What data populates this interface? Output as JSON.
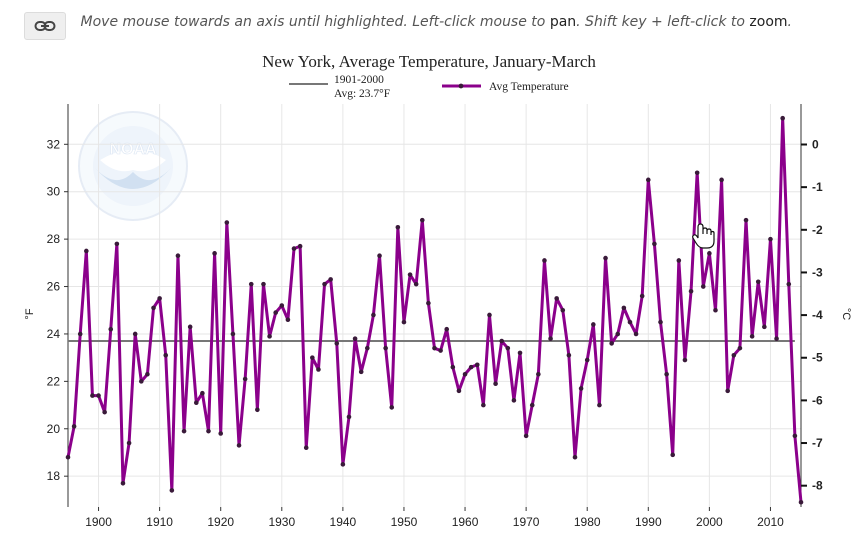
{
  "toolbar": {
    "hint_pre": "Move mouse towards an axis until highlighted. Left-click mouse to ",
    "hint_pan": "pan",
    "hint_mid": ". Shift key + left-click to ",
    "hint_zoom": "zoom",
    "hint_post": "."
  },
  "chart_data": {
    "type": "line",
    "title": "New York, Average Temperature, January-March",
    "ylabel": "°F",
    "y2label": "°C",
    "xlim": [
      1895,
      2015
    ],
    "ylim": [
      16.7,
      33.7
    ],
    "y2lim": [
      -8.5,
      0.95
    ],
    "x_ticks": [
      1900,
      1910,
      1920,
      1930,
      1940,
      1950,
      1960,
      1970,
      1980,
      1990,
      2000,
      2010
    ],
    "y_ticks": [
      18,
      20,
      22,
      24,
      26,
      28,
      30,
      32
    ],
    "y2_ticks": [
      0,
      -1,
      -2,
      -3,
      -4,
      -5,
      -6,
      -7,
      -8
    ],
    "grid": true,
    "legend": {
      "baseline_line1": "1901-2000",
      "baseline_line2": "Avg: 23.7°F",
      "series_name": "Avg Temperature"
    },
    "baseline": {
      "value": 23.7,
      "x_range": [
        1895,
        2014
      ]
    },
    "colors": {
      "series": "#8b008b",
      "marker": "#3a1a3a",
      "baseline": "#777777"
    },
    "series": [
      {
        "name": "Avg Temperature",
        "x": [
          1895,
          1896,
          1897,
          1898,
          1899,
          1900,
          1901,
          1902,
          1903,
          1904,
          1905,
          1906,
          1907,
          1908,
          1909,
          1910,
          1911,
          1912,
          1913,
          1914,
          1915,
          1916,
          1917,
          1918,
          1919,
          1920,
          1921,
          1922,
          1923,
          1924,
          1925,
          1926,
          1927,
          1928,
          1929,
          1930,
          1931,
          1932,
          1933,
          1934,
          1935,
          1936,
          1937,
          1938,
          1939,
          1940,
          1941,
          1942,
          1943,
          1944,
          1945,
          1946,
          1947,
          1948,
          1949,
          1950,
          1951,
          1952,
          1953,
          1954,
          1955,
          1956,
          1957,
          1958,
          1959,
          1960,
          1961,
          1962,
          1963,
          1964,
          1965,
          1966,
          1967,
          1968,
          1969,
          1970,
          1971,
          1972,
          1973,
          1974,
          1975,
          1976,
          1977,
          1978,
          1979,
          1980,
          1981,
          1982,
          1983,
          1984,
          1985,
          1986,
          1987,
          1988,
          1989,
          1990,
          1991,
          1992,
          1993,
          1994,
          1995,
          1996,
          1997,
          1998,
          1999,
          2000,
          2001,
          2002,
          2003,
          2004,
          2005,
          2006,
          2007,
          2008,
          2009,
          2010,
          2011,
          2012,
          2013,
          2014,
          2015
        ],
        "y": [
          18.8,
          20.1,
          24.0,
          27.5,
          21.4,
          21.4,
          20.7,
          24.2,
          27.8,
          17.7,
          19.4,
          24.0,
          22.0,
          22.3,
          25.1,
          25.5,
          23.1,
          17.4,
          27.3,
          19.9,
          24.3,
          21.1,
          21.5,
          19.9,
          27.4,
          19.8,
          28.7,
          24.0,
          19.3,
          22.1,
          26.1,
          20.8,
          26.1,
          23.9,
          24.9,
          25.2,
          24.6,
          27.6,
          27.7,
          19.2,
          23.0,
          22.5,
          26.1,
          26.3,
          23.6,
          18.5,
          20.5,
          23.8,
          22.4,
          23.4,
          24.8,
          27.3,
          23.4,
          20.9,
          28.5,
          24.5,
          26.5,
          26.1,
          28.8,
          25.3,
          23.4,
          23.3,
          24.2,
          22.6,
          21.6,
          22.3,
          22.6,
          22.7,
          21.0,
          24.8,
          21.9,
          23.7,
          23.4,
          21.2,
          23.2,
          19.7,
          21.0,
          22.3,
          27.1,
          23.8,
          25.5,
          25.0,
          23.1,
          18.8,
          21.7,
          22.9,
          24.4,
          21.0,
          27.2,
          23.6,
          24.0,
          25.1,
          24.5,
          24.0,
          25.6,
          30.5,
          27.8,
          24.5,
          22.3,
          18.9,
          27.1,
          22.9,
          25.8,
          30.8,
          26.0,
          27.4,
          25.0,
          30.5,
          21.6,
          23.1,
          23.4,
          28.8,
          23.9,
          26.2,
          24.3,
          28.0,
          23.8,
          33.1,
          26.1,
          19.7,
          16.9
        ]
      }
    ]
  }
}
